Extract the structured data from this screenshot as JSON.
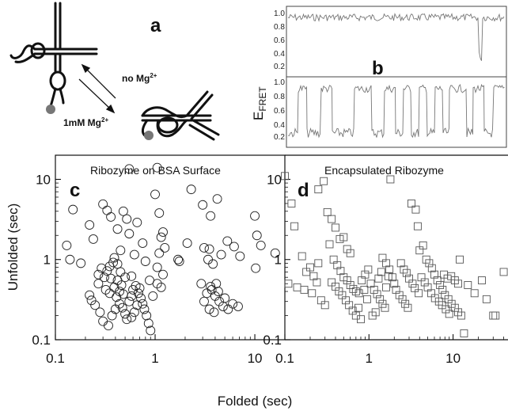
{
  "figure": {
    "panel_a": {
      "letter": "a",
      "label_no_mg": "no Mg",
      "label_no_mg_sup": "2+",
      "label_mg": "1mM Mg",
      "label_mg_sup": "2+"
    },
    "panel_b": {
      "letter": "b",
      "ylabel_main": "E",
      "ylabel_sub": "FRET",
      "ticks": [
        "1.0",
        "0.8",
        "0.6",
        "0.4",
        "0.2"
      ]
    }
  },
  "chart_data": [
    {
      "type": "scatter",
      "panel": "c",
      "title": "Ribozyme on BSA Surface",
      "xlabel": "Folded (sec)",
      "ylabel": "Unfolded (sec)",
      "xscale": "log",
      "yscale": "log",
      "xlim": [
        0.1,
        20
      ],
      "ylim": [
        0.1,
        20
      ],
      "xticks": [
        "0.1",
        "1",
        "10"
      ],
      "yticks": [
        "10",
        "1",
        "0.1"
      ],
      "marker": "circle",
      "points": [
        [
          0.13,
          1.5
        ],
        [
          0.15,
          4.2
        ],
        [
          0.14,
          1.0
        ],
        [
          0.18,
          0.9
        ],
        [
          0.22,
          2.7
        ],
        [
          0.24,
          1.8
        ],
        [
          0.27,
          0.5
        ],
        [
          0.3,
          4.9
        ],
        [
          0.33,
          4.1
        ],
        [
          0.36,
          3.4
        ],
        [
          0.29,
          0.78
        ],
        [
          0.31,
          0.6
        ],
        [
          0.33,
          0.72
        ],
        [
          0.35,
          0.82
        ],
        [
          0.38,
          0.92
        ],
        [
          0.42,
          0.55
        ],
        [
          0.46,
          0.48
        ],
        [
          0.32,
          0.42
        ],
        [
          0.35,
          0.38
        ],
        [
          0.39,
          0.45
        ],
        [
          0.41,
          0.34
        ],
        [
          0.44,
          0.4
        ],
        [
          0.48,
          0.37
        ],
        [
          0.22,
          0.36
        ],
        [
          0.23,
          0.31
        ],
        [
          0.25,
          0.27
        ],
        [
          0.28,
          0.22
        ],
        [
          0.3,
          0.17
        ],
        [
          0.34,
          0.15
        ],
        [
          0.37,
          0.2
        ],
        [
          0.4,
          0.24
        ],
        [
          0.44,
          0.28
        ],
        [
          0.47,
          0.25
        ],
        [
          0.5,
          0.21
        ],
        [
          0.52,
          0.18
        ],
        [
          0.55,
          0.3
        ],
        [
          0.58,
          0.35
        ],
        [
          0.6,
          0.42
        ],
        [
          0.64,
          0.47
        ],
        [
          0.68,
          0.38
        ],
        [
          0.72,
          0.33
        ],
        [
          0.75,
          0.28
        ],
        [
          0.78,
          0.24
        ],
        [
          0.82,
          0.2
        ],
        [
          0.86,
          0.16
        ],
        [
          0.9,
          0.13
        ],
        [
          0.62,
          0.22
        ],
        [
          0.58,
          0.19
        ],
        [
          0.66,
          0.27
        ],
        [
          0.7,
          0.44
        ],
        [
          0.55,
          13.5
        ],
        [
          0.48,
          4.0
        ],
        [
          0.52,
          3.2
        ],
        [
          0.42,
          2.4
        ],
        [
          0.55,
          2.1
        ],
        [
          0.66,
          2.9
        ],
        [
          0.75,
          1.6
        ],
        [
          0.45,
          1.3
        ],
        [
          0.62,
          1.15
        ],
        [
          0.8,
          0.95
        ],
        [
          0.5,
          0.6
        ],
        [
          0.45,
          0.7
        ],
        [
          0.88,
          0.55
        ],
        [
          0.95,
          0.35
        ],
        [
          1.05,
          0.5
        ],
        [
          0.58,
          0.62
        ],
        [
          0.36,
          0.58
        ],
        [
          0.27,
          0.65
        ],
        [
          0.42,
          0.88
        ],
        [
          0.39,
          1.05
        ],
        [
          1.05,
          14.0
        ],
        [
          1.0,
          6.5
        ],
        [
          1.1,
          3.8
        ],
        [
          1.2,
          2.2
        ],
        [
          1.15,
          1.9
        ],
        [
          1.1,
          1.2
        ],
        [
          1.05,
          0.8
        ],
        [
          1.2,
          0.65
        ],
        [
          1.15,
          0.45
        ],
        [
          1.25,
          1.4
        ],
        [
          1.7,
          1.0
        ],
        [
          1.75,
          0.95
        ],
        [
          2.1,
          1.6
        ],
        [
          2.3,
          7.5
        ],
        [
          3.0,
          4.8
        ],
        [
          3.6,
          3.5
        ],
        [
          4.2,
          5.7
        ],
        [
          3.1,
          1.4
        ],
        [
          3.5,
          1.35
        ],
        [
          4.6,
          1.15
        ],
        [
          5.3,
          1.7
        ],
        [
          6.2,
          1.45
        ],
        [
          7.1,
          1.1
        ],
        [
          3.4,
          1.0
        ],
        [
          3.8,
          0.88
        ],
        [
          2.9,
          0.5
        ],
        [
          3.3,
          0.38
        ],
        [
          3.7,
          0.42
        ],
        [
          4.0,
          0.35
        ],
        [
          4.4,
          0.3
        ],
        [
          4.8,
          0.26
        ],
        [
          3.5,
          0.24
        ],
        [
          3.9,
          0.22
        ],
        [
          4.3,
          0.4
        ],
        [
          5.0,
          0.33
        ],
        [
          5.4,
          0.24
        ],
        [
          6.0,
          0.28
        ],
        [
          6.8,
          0.26
        ],
        [
          3.1,
          0.3
        ],
        [
          3.6,
          0.46
        ],
        [
          4.1,
          0.5
        ],
        [
          10.0,
          3.5
        ],
        [
          10.5,
          2.0
        ],
        [
          11.5,
          1.5
        ],
        [
          16.0,
          1.2
        ],
        [
          10.2,
          0.78
        ]
      ]
    },
    {
      "type": "scatter",
      "panel": "d",
      "title": "Encapsulated Ribozyme",
      "xlabel": "",
      "ylabel": "",
      "xscale": "log",
      "yscale": "log",
      "xlim": [
        0.1,
        45
      ],
      "ylim": [
        0.1,
        20
      ],
      "xticks": [
        "0.1",
        "1",
        "10"
      ],
      "yticks": [
        "10",
        "1",
        "0.1"
      ],
      "marker": "square",
      "points": [
        [
          0.1,
          11.0
        ],
        [
          0.12,
          5.0
        ],
        [
          0.13,
          2.6
        ],
        [
          0.16,
          1.1
        ],
        [
          0.2,
          0.8
        ],
        [
          0.22,
          0.62
        ],
        [
          0.25,
          0.9
        ],
        [
          0.18,
          0.7
        ],
        [
          0.11,
          0.5
        ],
        [
          0.14,
          0.45
        ],
        [
          0.17,
          0.42
        ],
        [
          0.21,
          0.38
        ],
        [
          0.24,
          0.52
        ],
        [
          0.27,
          0.31
        ],
        [
          0.3,
          0.27
        ],
        [
          0.25,
          7.5
        ],
        [
          0.29,
          9.5
        ],
        [
          0.32,
          3.9
        ],
        [
          0.36,
          3.2
        ],
        [
          0.4,
          2.5
        ],
        [
          0.45,
          1.8
        ],
        [
          0.5,
          1.9
        ],
        [
          0.55,
          1.35
        ],
        [
          0.6,
          1.2
        ],
        [
          0.34,
          1.55
        ],
        [
          0.38,
          1.0
        ],
        [
          0.42,
          0.85
        ],
        [
          0.46,
          0.72
        ],
        [
          0.5,
          0.6
        ],
        [
          0.55,
          0.55
        ],
        [
          0.6,
          0.48
        ],
        [
          0.65,
          0.43
        ],
        [
          0.7,
          0.4
        ],
        [
          0.36,
          0.52
        ],
        [
          0.4,
          0.46
        ],
        [
          0.44,
          0.4
        ],
        [
          0.48,
          0.36
        ],
        [
          0.53,
          0.31
        ],
        [
          0.58,
          0.27
        ],
        [
          0.64,
          0.23
        ],
        [
          0.7,
          0.2
        ],
        [
          0.76,
          0.38
        ],
        [
          0.82,
          0.55
        ],
        [
          0.9,
          0.65
        ],
        [
          0.98,
          0.75
        ],
        [
          1.05,
          0.5
        ],
        [
          1.15,
          0.42
        ],
        [
          1.25,
          0.37
        ],
        [
          1.35,
          0.32
        ],
        [
          1.45,
          0.28
        ],
        [
          1.55,
          0.25
        ],
        [
          1.2,
          0.22
        ],
        [
          1.1,
          0.2
        ],
        [
          1.6,
          0.45
        ],
        [
          1.7,
          0.62
        ],
        [
          1.8,
          10.0
        ],
        [
          1.45,
          1.05
        ],
        [
          1.6,
          0.9
        ],
        [
          1.75,
          0.75
        ],
        [
          1.9,
          0.6
        ],
        [
          2.0,
          0.5
        ],
        [
          2.1,
          0.42
        ],
        [
          2.3,
          0.36
        ],
        [
          2.5,
          0.32
        ],
        [
          2.7,
          0.28
        ],
        [
          2.9,
          0.25
        ],
        [
          3.2,
          5.0
        ],
        [
          3.6,
          4.2
        ],
        [
          3.8,
          2.6
        ],
        [
          4.0,
          1.3
        ],
        [
          4.4,
          1.5
        ],
        [
          4.8,
          1.0
        ],
        [
          5.2,
          0.9
        ],
        [
          5.6,
          0.78
        ],
        [
          6.0,
          0.65
        ],
        [
          6.5,
          0.55
        ],
        [
          7.0,
          0.48
        ],
        [
          7.5,
          0.42
        ],
        [
          8.0,
          0.36
        ],
        [
          8.8,
          0.32
        ],
        [
          9.6,
          0.28
        ],
        [
          10.5,
          0.25
        ],
        [
          11.5,
          0.22
        ],
        [
          12.5,
          0.2
        ],
        [
          4.2,
          0.6
        ],
        [
          4.6,
          0.52
        ],
        [
          5.0,
          0.45
        ],
        [
          5.5,
          0.38
        ],
        [
          6.1,
          0.33
        ],
        [
          6.8,
          0.3
        ],
        [
          7.4,
          0.27
        ],
        [
          8.2,
          0.24
        ],
        [
          9.0,
          0.21
        ],
        [
          2.4,
          0.9
        ],
        [
          2.6,
          0.75
        ],
        [
          2.8,
          0.68
        ],
        [
          3.0,
          0.58
        ],
        [
          3.3,
          0.5
        ],
        [
          3.5,
          0.44
        ],
        [
          3.9,
          0.38
        ],
        [
          15.0,
          0.48
        ],
        [
          18.0,
          0.38
        ],
        [
          25.0,
          0.32
        ],
        [
          30.0,
          0.2
        ],
        [
          32.0,
          0.2
        ],
        [
          40.0,
          0.7
        ],
        [
          22.0,
          0.55
        ],
        [
          12.0,
          1.0
        ],
        [
          13.5,
          0.12
        ],
        [
          9.5,
          0.62
        ],
        [
          10.5,
          0.55
        ],
        [
          11.5,
          0.5
        ],
        [
          7.8,
          0.65
        ],
        [
          8.6,
          0.58
        ],
        [
          0.95,
          0.32
        ],
        [
          0.88,
          0.42
        ],
        [
          1.3,
          0.58
        ],
        [
          1.4,
          0.7
        ],
        [
          0.8,
          0.18
        ],
        [
          0.75,
          0.25
        ]
      ]
    }
  ]
}
